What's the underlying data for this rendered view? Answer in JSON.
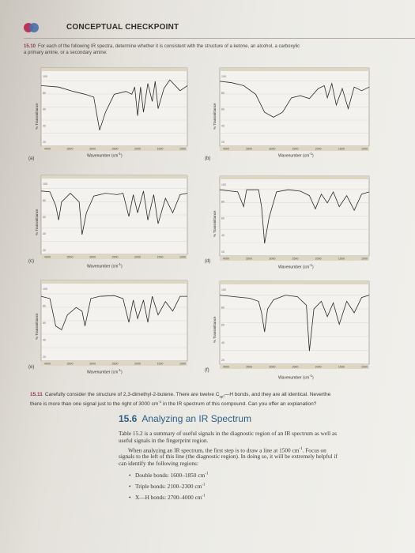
{
  "header": {
    "title": "CONCEPTUAL CHECKPOINT"
  },
  "problem_1510": {
    "number": "15.10",
    "line1": "For each of the following IR spectra, determine whether it is consistent with the structure of a ketone, an alcohol, a carboxylic",
    "line2": "a primary amine, or a secondary amine:"
  },
  "spectra": {
    "x_label": "Wavenumber (cm",
    "x_label_sup": "-1",
    "x_label_end": ")",
    "y_label": "% Transmittance",
    "x_ticks": [
      "4000",
      "3500",
      "3000",
      "2500",
      "2000",
      "1500",
      "1000"
    ],
    "y_ticks": [
      "100",
      "80",
      "60",
      "40",
      "20"
    ],
    "panels": [
      {
        "label": "(a)"
      },
      {
        "label": "(b)"
      },
      {
        "label": "(c)"
      },
      {
        "label": "(d)"
      },
      {
        "label": "(e)"
      },
      {
        "label": "(f)"
      }
    ]
  },
  "problem_1511": {
    "number": "15.11",
    "line1": "Carefully consider the structure of 2,3-dimethyl-2-butene. There are twelve C",
    "sub": "sp³",
    "line1b": "—H bonds, and they are all identical. Neverthe",
    "line2": "there is more than one signal just to the right of 3000 cm",
    "line2_sup": "-1",
    "line2b": " in the IR spectrum of this compound. Can you offer an explanation?"
  },
  "section": {
    "number": "15.6",
    "title": "Analyzing an IR Spectrum",
    "para1_line1": "Table 15.2 is a summary of useful signals in the diagnostic region of an IR spectrum as well as",
    "para1_line2": "useful signals in the fingerprint region.",
    "para2_line1": "When analyzing an IR spectrum, the first step is to draw a line at 1500 cm",
    "para2_line1_sup": "-1",
    "para2_line1b": ". Focus on",
    "para2_line2": "signals to the left of this line (the diagnostic region). In doing so, it will be extremely helpful if",
    "para2_line3": "can identify the following regions:",
    "bullets": [
      {
        "label": "Double bonds: 1600–1850 cm",
        "sup": "-1"
      },
      {
        "label": "Triple bonds: 2100–2300 cm",
        "sup": "-1"
      },
      {
        "label": "X—H bonds: 2700–4000 cm",
        "sup": "-1"
      }
    ]
  }
}
